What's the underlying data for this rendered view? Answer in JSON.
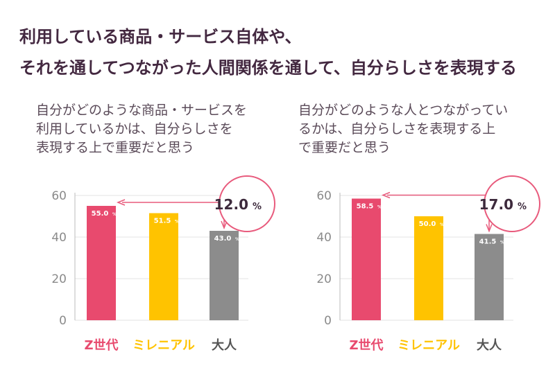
{
  "headline": {
    "line1": "利用している商品・サービス自体や、",
    "line2": "それを通してつながった人間関係を通して、自分らしさを表現する"
  },
  "colors": {
    "gen_z": "#e84a6e",
    "millennial": "#ffc300",
    "adult": "#8c8c8c",
    "accent": "#e85a7c"
  },
  "chart_data": [
    {
      "type": "bar",
      "title": "自分がどのような商品・サービスを利用しているかは、自分らしさを表現する上で重要だと思う",
      "categories": [
        "Z世代",
        "ミレニアル",
        "大人"
      ],
      "values": [
        55.0,
        51.5,
        43.0
      ],
      "value_labels": [
        "55.0",
        "51.5",
        "43.0"
      ],
      "unit": "%",
      "ylim": [
        0,
        60
      ],
      "yticks": [
        "0",
        "20",
        "40",
        "60"
      ],
      "difference": "12.0",
      "difference_unit": "%"
    },
    {
      "type": "bar",
      "title": "自分がどのような人とつながっているかは、自分らしさを表現する上で重要だと思う",
      "categories": [
        "Z世代",
        "ミレニアル",
        "大人"
      ],
      "values": [
        58.5,
        50.0,
        41.5
      ],
      "value_labels": [
        "58.5",
        "50.0",
        "41.5"
      ],
      "unit": "%",
      "ylim": [
        0,
        60
      ],
      "yticks": [
        "0",
        "20",
        "40",
        "60"
      ],
      "difference": "17.0",
      "difference_unit": "%"
    }
  ]
}
